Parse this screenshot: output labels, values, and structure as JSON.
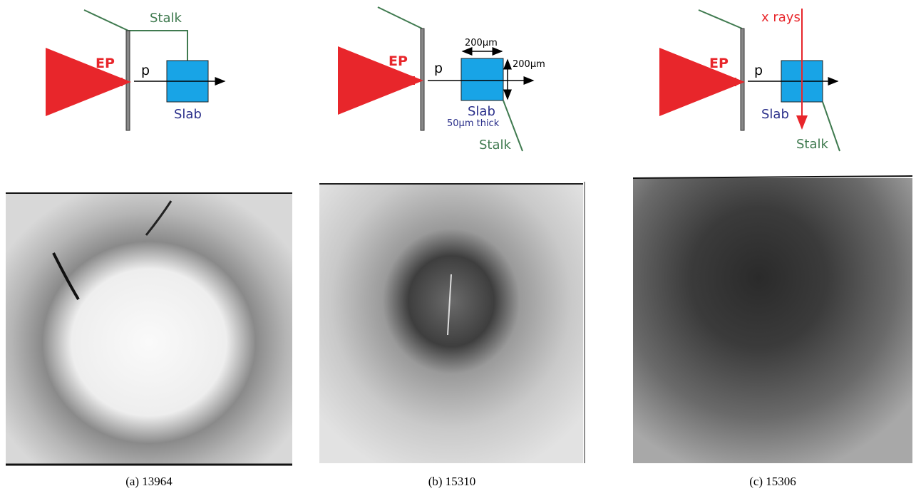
{
  "panels": [
    {
      "labels": {
        "stalk": "Stalk",
        "ep": "EP",
        "p": "p",
        "slab": "Slab"
      },
      "caption": "(a) 13964"
    },
    {
      "labels": {
        "stalk": "Stalk",
        "ep": "EP",
        "p": "p",
        "slab": "Slab",
        "width": "200μm",
        "height": "200μm",
        "thickness": "50μm thick"
      },
      "caption": "(b) 15310"
    },
    {
      "labels": {
        "stalk": "Stalk",
        "ep": "EP",
        "p": "p",
        "slab": "Slab",
        "xrays": "x rays"
      },
      "caption": "(c) 15306"
    }
  ]
}
